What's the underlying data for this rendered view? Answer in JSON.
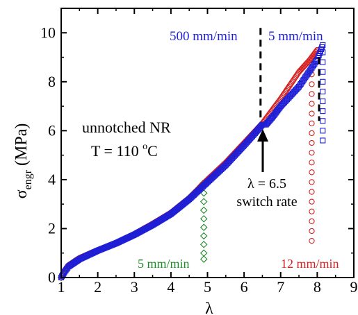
{
  "chart_data": {
    "type": "scatter",
    "xlabel": "λ",
    "ylabel_main": "σ",
    "ylabel_sub": "engr",
    "ylabel_unit": " (MPa)",
    "xlim": [
      1,
      9
    ],
    "ylim": [
      0,
      11
    ],
    "xticks": [
      1,
      2,
      3,
      4,
      5,
      6,
      7,
      8,
      9
    ],
    "yticks": [
      0,
      2,
      4,
      6,
      8,
      10
    ],
    "grid": false,
    "colors": {
      "blue": "#1f1fd6",
      "red": "#d42020",
      "green": "#1f8a2a",
      "black": "#000000"
    },
    "annotations": {
      "sample_line1": "unnotched NR",
      "sample_line2_pre": "T = 110 ",
      "sample_line2_sup": "o",
      "sample_line2_post": "C",
      "rate_before": "500 mm/min",
      "rate_after": "5 mm/min",
      "switch_line1": "λ = 6.5",
      "switch_line2": "switch rate",
      "green_rate": "5 mm/min",
      "red_rate": "12 mm/min"
    },
    "series": [
      {
        "color": "green",
        "loading": [
          [
            1.0,
            0.0
          ],
          [
            1.1,
            0.28
          ],
          [
            1.2,
            0.48
          ],
          [
            1.35,
            0.65
          ],
          [
            1.5,
            0.78
          ],
          [
            1.75,
            0.95
          ],
          [
            2.0,
            1.1
          ],
          [
            2.5,
            1.4
          ],
          [
            3.0,
            1.75
          ],
          [
            3.5,
            2.15
          ],
          [
            4.0,
            2.6
          ],
          [
            4.5,
            3.2
          ],
          [
            4.88,
            3.85
          ]
        ],
        "drop": [
          [
            4.9,
            3.8
          ],
          [
            4.9,
            3.45
          ],
          [
            4.9,
            3.1
          ],
          [
            4.9,
            2.75
          ],
          [
            4.9,
            2.4
          ],
          [
            4.9,
            2.05
          ],
          [
            4.9,
            1.7
          ],
          [
            4.9,
            1.35
          ],
          [
            4.9,
            1.0
          ],
          [
            4.9,
            0.75
          ]
        ]
      },
      {
        "color": "red",
        "loading": [
          [
            1.0,
            0.0
          ],
          [
            1.1,
            0.3
          ],
          [
            1.2,
            0.5
          ],
          [
            1.5,
            0.8
          ],
          [
            2.0,
            1.12
          ],
          [
            2.5,
            1.42
          ],
          [
            3.0,
            1.78
          ],
          [
            3.5,
            2.2
          ],
          [
            4.0,
            2.65
          ],
          [
            4.5,
            3.25
          ],
          [
            5.0,
            4.0
          ],
          [
            5.5,
            4.7
          ],
          [
            6.0,
            5.5
          ],
          [
            6.5,
            6.3
          ],
          [
            7.0,
            7.3
          ],
          [
            7.5,
            8.4
          ],
          [
            7.8,
            8.9
          ],
          [
            8.0,
            9.3
          ]
        ],
        "drop": [
          [
            7.85,
            8.7
          ],
          [
            7.85,
            8.3
          ],
          [
            7.85,
            7.9
          ],
          [
            7.85,
            7.5
          ],
          [
            7.85,
            7.1
          ],
          [
            7.85,
            6.7
          ],
          [
            7.85,
            6.3
          ],
          [
            7.85,
            5.9
          ],
          [
            7.85,
            5.5
          ],
          [
            7.85,
            5.1
          ],
          [
            7.85,
            4.7
          ],
          [
            7.85,
            4.3
          ],
          [
            7.85,
            3.9
          ],
          [
            7.85,
            3.5
          ],
          [
            7.85,
            3.1
          ],
          [
            7.85,
            2.7
          ],
          [
            7.85,
            2.3
          ],
          [
            7.85,
            1.9
          ],
          [
            7.85,
            1.5
          ]
        ]
      },
      {
        "color": "blue",
        "loading": [
          [
            1.0,
            0.0
          ],
          [
            1.1,
            0.25
          ],
          [
            1.2,
            0.45
          ],
          [
            1.5,
            0.75
          ],
          [
            2.0,
            1.1
          ],
          [
            2.5,
            1.4
          ],
          [
            3.0,
            1.75
          ],
          [
            3.5,
            2.15
          ],
          [
            4.0,
            2.6
          ],
          [
            4.5,
            3.2
          ],
          [
            5.0,
            3.9
          ],
          [
            5.5,
            4.6
          ],
          [
            6.0,
            5.4
          ],
          [
            6.3,
            5.9
          ],
          [
            6.5,
            6.25
          ],
          [
            6.6,
            6.25
          ],
          [
            6.8,
            6.6
          ],
          [
            7.0,
            7.0
          ],
          [
            7.5,
            7.8
          ],
          [
            8.0,
            8.9
          ],
          [
            8.15,
            9.5
          ]
        ],
        "drop": [
          [
            8.15,
            9.2
          ],
          [
            8.15,
            8.8
          ],
          [
            8.15,
            8.4
          ],
          [
            8.15,
            8.0
          ],
          [
            8.15,
            7.6
          ],
          [
            8.15,
            7.2
          ],
          [
            8.15,
            6.8
          ],
          [
            8.15,
            6.4
          ],
          [
            8.15,
            6.0
          ],
          [
            8.15,
            5.6
          ]
        ]
      }
    ],
    "guides": [
      {
        "x": 6.45,
        "y_from": 6.4,
        "y_to": 10.2
      },
      {
        "x": 8.05,
        "y_from": 6.4,
        "y_to": 9.0
      }
    ]
  }
}
